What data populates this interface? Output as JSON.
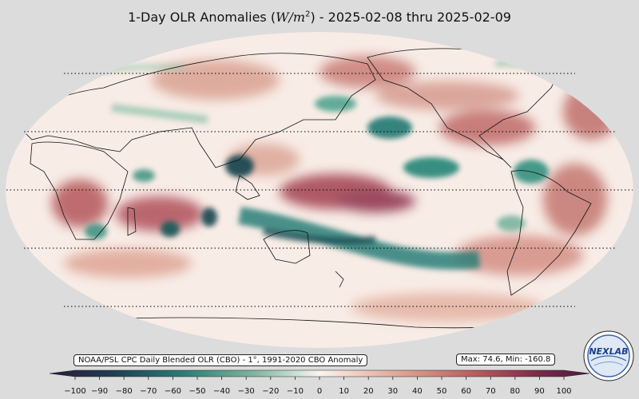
{
  "title": {
    "prefix": "1-Day OLR Anomalies (",
    "units": "W/m",
    "units_exp": "2",
    "suffix": ") - 2025-02-08 thru 2025-02-09"
  },
  "info_text": "NOAA/PSL CPC Daily Blended OLR (CBO) - 1°, 1991-2020 CBO Anomaly",
  "stats_text": "Max: 74.6,  Min: -160.8",
  "colorbar": {
    "ticks": [
      "−100",
      "−90",
      "−80",
      "−70",
      "−60",
      "−50",
      "−40",
      "−30",
      "−20",
      "−10",
      "0",
      "10",
      "20",
      "30",
      "40",
      "50",
      "60",
      "70",
      "80",
      "90",
      "100"
    ],
    "range": [
      -100,
      100
    ],
    "colors": {
      "deep_negative": "#2b1a3d",
      "negative_mid": "#2a7f78",
      "negative_light": "#a9d1bb",
      "neutral": "#faf3ef",
      "positive_light": "#e9b7a7",
      "positive_mid": "#b4565a",
      "deep_positive": "#4a1740"
    }
  },
  "logo": {
    "text": "NEXLAB",
    "name": "nexlab-logo"
  }
}
